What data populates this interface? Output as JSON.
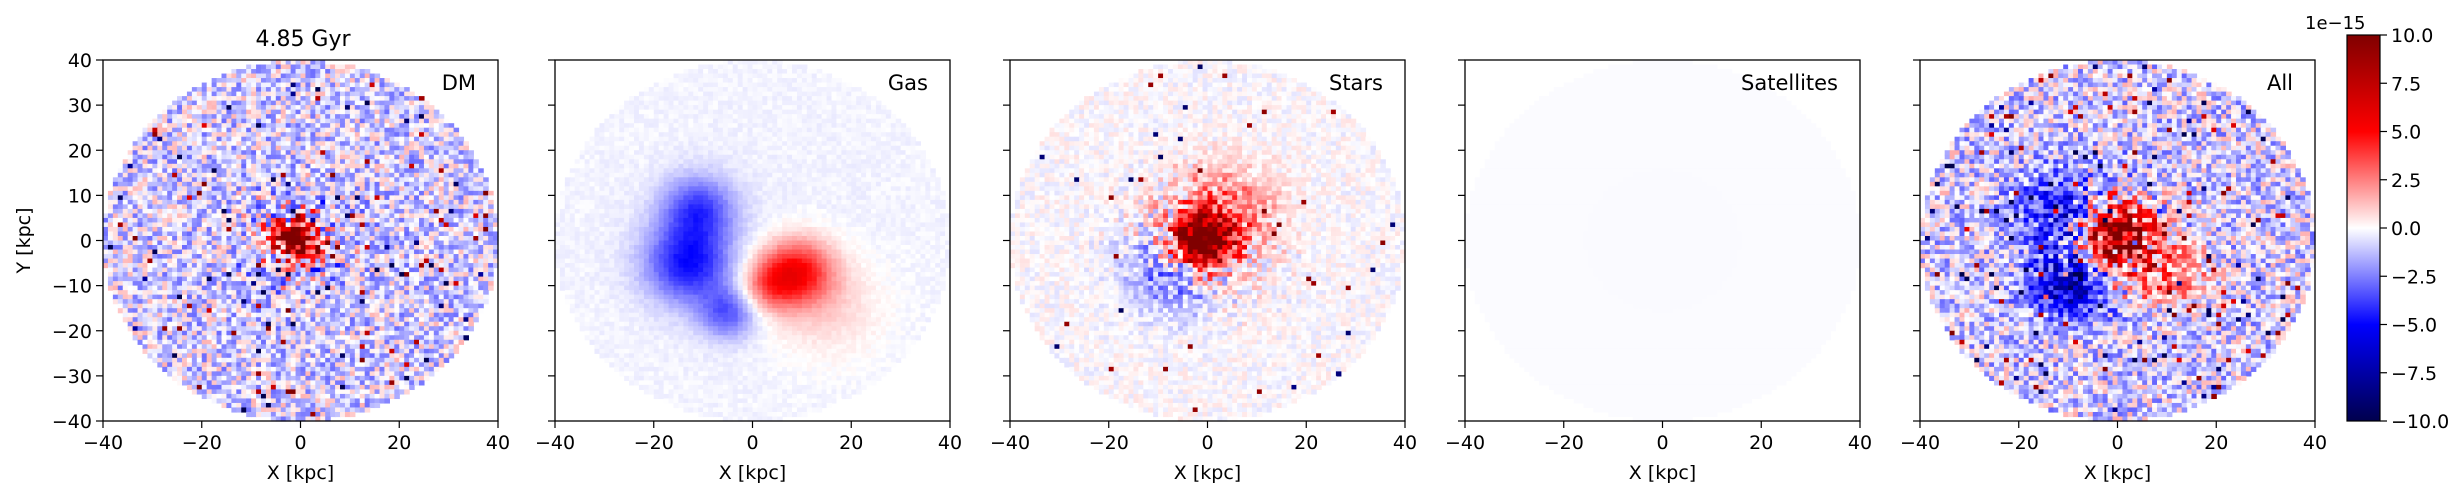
{
  "title": "4.85 Gyr",
  "colorbar": {
    "offset_text": "1e−15",
    "ticks": [
      10.0,
      7.5,
      5.0,
      2.5,
      0.0,
      -2.5,
      -5.0,
      -7.5,
      -10.0
    ],
    "tick_labels": [
      "10.0",
      "7.5",
      "5.0",
      "2.5",
      "0.0",
      "−2.5",
      "−5.0",
      "−7.5",
      "−10.0"
    ],
    "range": [
      -10.0,
      10.0
    ],
    "colormap": "seismic",
    "colors": [
      "#00004d",
      "#0000ff",
      "#ffffff",
      "#ff0000",
      "#800000"
    ]
  },
  "chart_data": [
    {
      "type": "heatmap",
      "label": "DM",
      "xlabel": "X [kpc]",
      "ylabel": "Y [kpc]",
      "xlim": [
        -40,
        40
      ],
      "ylim": [
        -40,
        40
      ],
      "xticks": [
        -40,
        -20,
        0,
        20,
        40
      ],
      "yticks": [
        -40,
        -30,
        -20,
        -10,
        0,
        10,
        20,
        30,
        40
      ],
      "xtick_labels": [
        "−40",
        "−20",
        "0",
        "20",
        "40"
      ],
      "ytick_labels": [
        "−40",
        "−30",
        "−20",
        "−10",
        "0",
        "10",
        "20",
        "30",
        "40"
      ],
      "disk_radius": 40,
      "field": {
        "background": -0.9,
        "noise": 2.2,
        "speckle": 0.03,
        "components": [
          {
            "x": -1,
            "y": 0,
            "sigma": 3,
            "amp": 12
          },
          {
            "x": -1,
            "y": 0,
            "sigma": 7,
            "amp": 0,
            "noise": 6
          }
        ]
      }
    },
    {
      "type": "heatmap",
      "label": "Gas",
      "xlabel": "X [kpc]",
      "ylabel": "",
      "xlim": [
        -40,
        40
      ],
      "ylim": [
        -40,
        40
      ],
      "xticks": [
        -40,
        -20,
        0,
        20,
        40
      ],
      "yticks": [
        -40,
        -30,
        -20,
        -10,
        0,
        10,
        20,
        30,
        40
      ],
      "xtick_labels": [
        "−40",
        "−20",
        "0",
        "20",
        "40"
      ],
      "ytick_labels": [],
      "disk_radius": 40,
      "field": {
        "background": -0.3,
        "noise": 0.2,
        "speckle": 0,
        "components": [
          {
            "x": -13,
            "y": -5,
            "sigma": 6,
            "amp": -4.5
          },
          {
            "x": -11,
            "y": 7,
            "sigma": 5,
            "amp": -3.5
          },
          {
            "x": -5,
            "y": -16,
            "sigma": 4,
            "amp": -3
          },
          {
            "x": 9,
            "y": -7,
            "sigma": 5,
            "amp": 5
          },
          {
            "x": 3,
            "y": -10,
            "sigma": 4,
            "amp": 2.5
          },
          {
            "x": 15,
            "y": -15,
            "sigma": 8,
            "amp": 1
          }
        ]
      }
    },
    {
      "type": "heatmap",
      "label": "Stars",
      "xlabel": "X [kpc]",
      "ylabel": "",
      "xlim": [
        -40,
        40
      ],
      "ylim": [
        -40,
        40
      ],
      "xticks": [
        -40,
        -20,
        0,
        20,
        40
      ],
      "yticks": [
        -40,
        -30,
        -20,
        -10,
        0,
        10,
        20,
        30,
        40
      ],
      "xtick_labels": [
        "−40",
        "−20",
        "0",
        "20",
        "40"
      ],
      "ytick_labels": [],
      "disk_radius": 40,
      "field": {
        "background": 0,
        "noise": 0.6,
        "speckle": 0.01,
        "components": [
          {
            "x": -1,
            "y": 0,
            "sigma": 4,
            "amp": 12
          },
          {
            "x": 3,
            "y": 6,
            "sigma": 7,
            "amp": 3
          },
          {
            "x": -8,
            "y": -8,
            "sigma": 6,
            "amp": -2.5
          },
          {
            "x": -1,
            "y": 0,
            "sigma": 9,
            "amp": 0,
            "noise": 5
          }
        ]
      }
    },
    {
      "type": "heatmap",
      "label": "Satellites",
      "xlabel": "X [kpc]",
      "ylabel": "",
      "xlim": [
        -40,
        40
      ],
      "ylim": [
        -40,
        40
      ],
      "xticks": [
        -40,
        -20,
        0,
        20,
        40
      ],
      "yticks": [
        -40,
        -30,
        -20,
        -10,
        0,
        10,
        20,
        30,
        40
      ],
      "xtick_labels": [
        "−40",
        "−20",
        "0",
        "20",
        "40"
      ],
      "ytick_labels": [],
      "disk_radius": 40,
      "field": {
        "background": -0.1,
        "noise": 0,
        "speckle": 0,
        "components": []
      }
    },
    {
      "type": "heatmap",
      "label": "All",
      "xlabel": "X [kpc]",
      "ylabel": "",
      "xlim": [
        -40,
        40
      ],
      "ylim": [
        -40,
        40
      ],
      "xticks": [
        -40,
        -20,
        0,
        20,
        40
      ],
      "yticks": [
        -40,
        -30,
        -20,
        -10,
        0,
        10,
        20,
        30,
        40
      ],
      "xtick_labels": [
        "−40",
        "−20",
        "0",
        "20",
        "40"
      ],
      "ytick_labels": [],
      "disk_radius": 40,
      "field": {
        "background": -1.0,
        "noise": 2.4,
        "speckle": 0.03,
        "components": [
          {
            "x": 0,
            "y": 1,
            "sigma": 5,
            "amp": 10
          },
          {
            "x": -10,
            "y": -10,
            "sigma": 5,
            "amp": -6
          },
          {
            "x": -12,
            "y": 6,
            "sigma": 6,
            "amp": -4
          },
          {
            "x": 11,
            "y": -7,
            "sigma": 5,
            "amp": 4
          },
          {
            "x": 0,
            "y": 0,
            "sigma": 9,
            "amp": 0,
            "noise": 6
          }
        ]
      }
    }
  ]
}
